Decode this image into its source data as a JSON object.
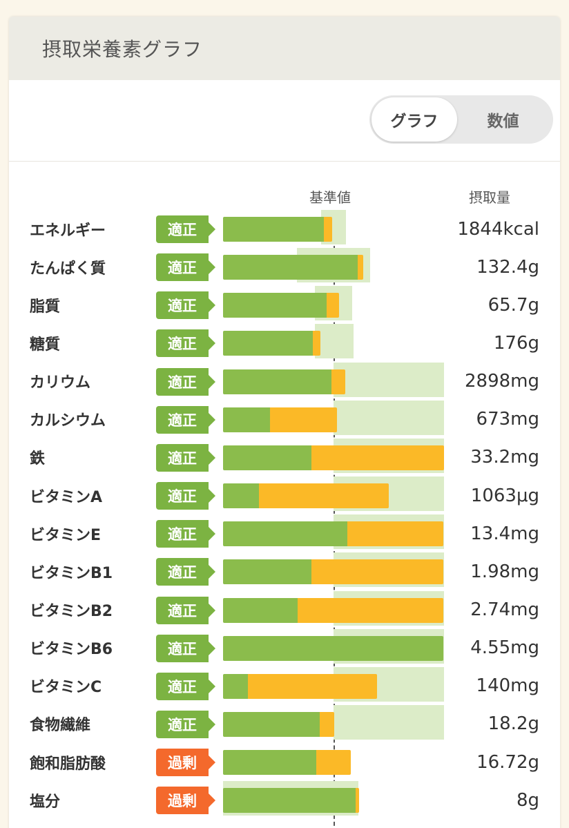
{
  "header": {
    "title": "摂取栄養素グラフ"
  },
  "toggle": {
    "graph_label": "グラフ",
    "number_label": "数値"
  },
  "columns": {
    "baseline_label": "基準値",
    "intake_label": "摂取量"
  },
  "colors": {
    "ok": "#7cb342",
    "over": "#f4692c",
    "bar_green": "#8bbc4c",
    "bar_orange": "#fbb927",
    "range": "#dcecc8"
  },
  "nutrients": [
    {
      "name": "エネルギー",
      "status": "適正",
      "status_type": "ok",
      "value": "1844kcal"
    },
    {
      "name": "たんぱく質",
      "status": "適正",
      "status_type": "ok",
      "value": "132.4g"
    },
    {
      "name": "脂質",
      "status": "適正",
      "status_type": "ok",
      "value": "65.7g"
    },
    {
      "name": "糖質",
      "status": "適正",
      "status_type": "ok",
      "value": "176g"
    },
    {
      "name": "カリウム",
      "status": "適正",
      "status_type": "ok",
      "value": "2898mg"
    },
    {
      "name": "カルシウム",
      "status": "適正",
      "status_type": "ok",
      "value": "673mg"
    },
    {
      "name": "鉄",
      "status": "適正",
      "status_type": "ok",
      "value": "33.2mg"
    },
    {
      "name": "ビタミンA",
      "status": "適正",
      "status_type": "ok",
      "value": "1063μg"
    },
    {
      "name": "ビタミンE",
      "status": "適正",
      "status_type": "ok",
      "value": "13.4mg"
    },
    {
      "name": "ビタミンB1",
      "status": "適正",
      "status_type": "ok",
      "value": "1.98mg"
    },
    {
      "name": "ビタミンB2",
      "status": "適正",
      "status_type": "ok",
      "value": "2.74mg"
    },
    {
      "name": "ビタミンB6",
      "status": "適正",
      "status_type": "ok",
      "value": "4.55mg"
    },
    {
      "name": "ビタミンC",
      "status": "適正",
      "status_type": "ok",
      "value": "140mg"
    },
    {
      "name": "食物繊維",
      "status": "適正",
      "status_type": "ok",
      "value": "18.2g"
    },
    {
      "name": "飽和脂肪酸",
      "status": "過剰",
      "status_type": "over",
      "value": "16.72g"
    },
    {
      "name": "塩分",
      "status": "過剰",
      "status_type": "over",
      "value": "8g"
    }
  ]
}
